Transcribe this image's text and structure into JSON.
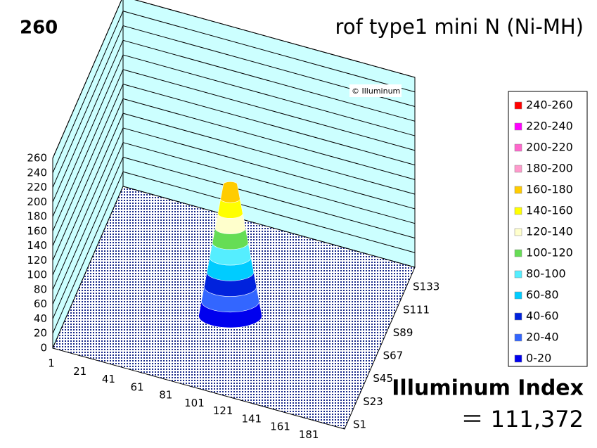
{
  "chart_data": {
    "type": "surface3d",
    "corner_label": "260",
    "title": "rof type1 mini N (Ni-MH)",
    "watermark": "© Illuminum",
    "index_label": "Illuminum Index",
    "index_value": "＝ 111,372",
    "zlim": [
      0,
      260
    ],
    "zticks": [
      0,
      20,
      40,
      60,
      80,
      100,
      120,
      140,
      160,
      180,
      200,
      220,
      240,
      260
    ],
    "xlim": [
      1,
      205
    ],
    "xticks": [
      1,
      21,
      41,
      61,
      81,
      101,
      121,
      141,
      161,
      181
    ],
    "ylim": [
      1,
      156
    ],
    "yticks": [
      {
        "value": 1,
        "label": "S1"
      },
      {
        "value": 23,
        "label": "S23"
      },
      {
        "value": 45,
        "label": "S45"
      },
      {
        "value": 67,
        "label": "S67"
      },
      {
        "value": 89,
        "label": "S89"
      },
      {
        "value": 111,
        "label": "S111"
      },
      {
        "value": 133,
        "label": "S133"
      }
    ],
    "peak_value": 180,
    "wall_color": "#ccffff",
    "legend": [
      {
        "label": "240-260",
        "color": "#ff0000"
      },
      {
        "label": "220-240",
        "color": "#ff00ff"
      },
      {
        "label": "200-220",
        "color": "#ff66cc"
      },
      {
        "label": "180-200",
        "color": "#ff99cc"
      },
      {
        "label": "160-180",
        "color": "#ffcc00"
      },
      {
        "label": "140-160",
        "color": "#ffff00"
      },
      {
        "label": "120-140",
        "color": "#ffffcc"
      },
      {
        "label": "100-120",
        "color": "#66dd55"
      },
      {
        "label": "80-100",
        "color": "#55eeff"
      },
      {
        "label": "60-80",
        "color": "#00ccff"
      },
      {
        "label": "40-60",
        "color": "#0022dd"
      },
      {
        "label": "20-40",
        "color": "#3366ff"
      },
      {
        "label": "0-20",
        "color": "#0000ee"
      }
    ]
  }
}
